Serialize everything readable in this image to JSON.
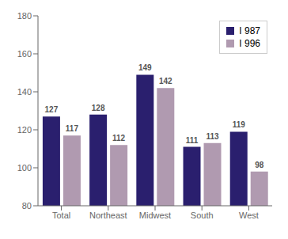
{
  "chart_data": {
    "type": "bar",
    "categories": [
      "Total",
      "Northeast",
      "Midwest",
      "South",
      "West"
    ],
    "series": [
      {
        "name": "I 987",
        "color": "#2a1f6e",
        "values": [
          127,
          128,
          149,
          111,
          119
        ]
      },
      {
        "name": "I 996",
        "color": "#b09ab0",
        "values": [
          117,
          112,
          142,
          113,
          98
        ]
      }
    ],
    "ylim": [
      80,
      180
    ],
    "yticks": [
      80,
      100,
      120,
      140,
      160,
      180
    ],
    "grid": false,
    "legend": "upper right",
    "data_labels": true
  }
}
